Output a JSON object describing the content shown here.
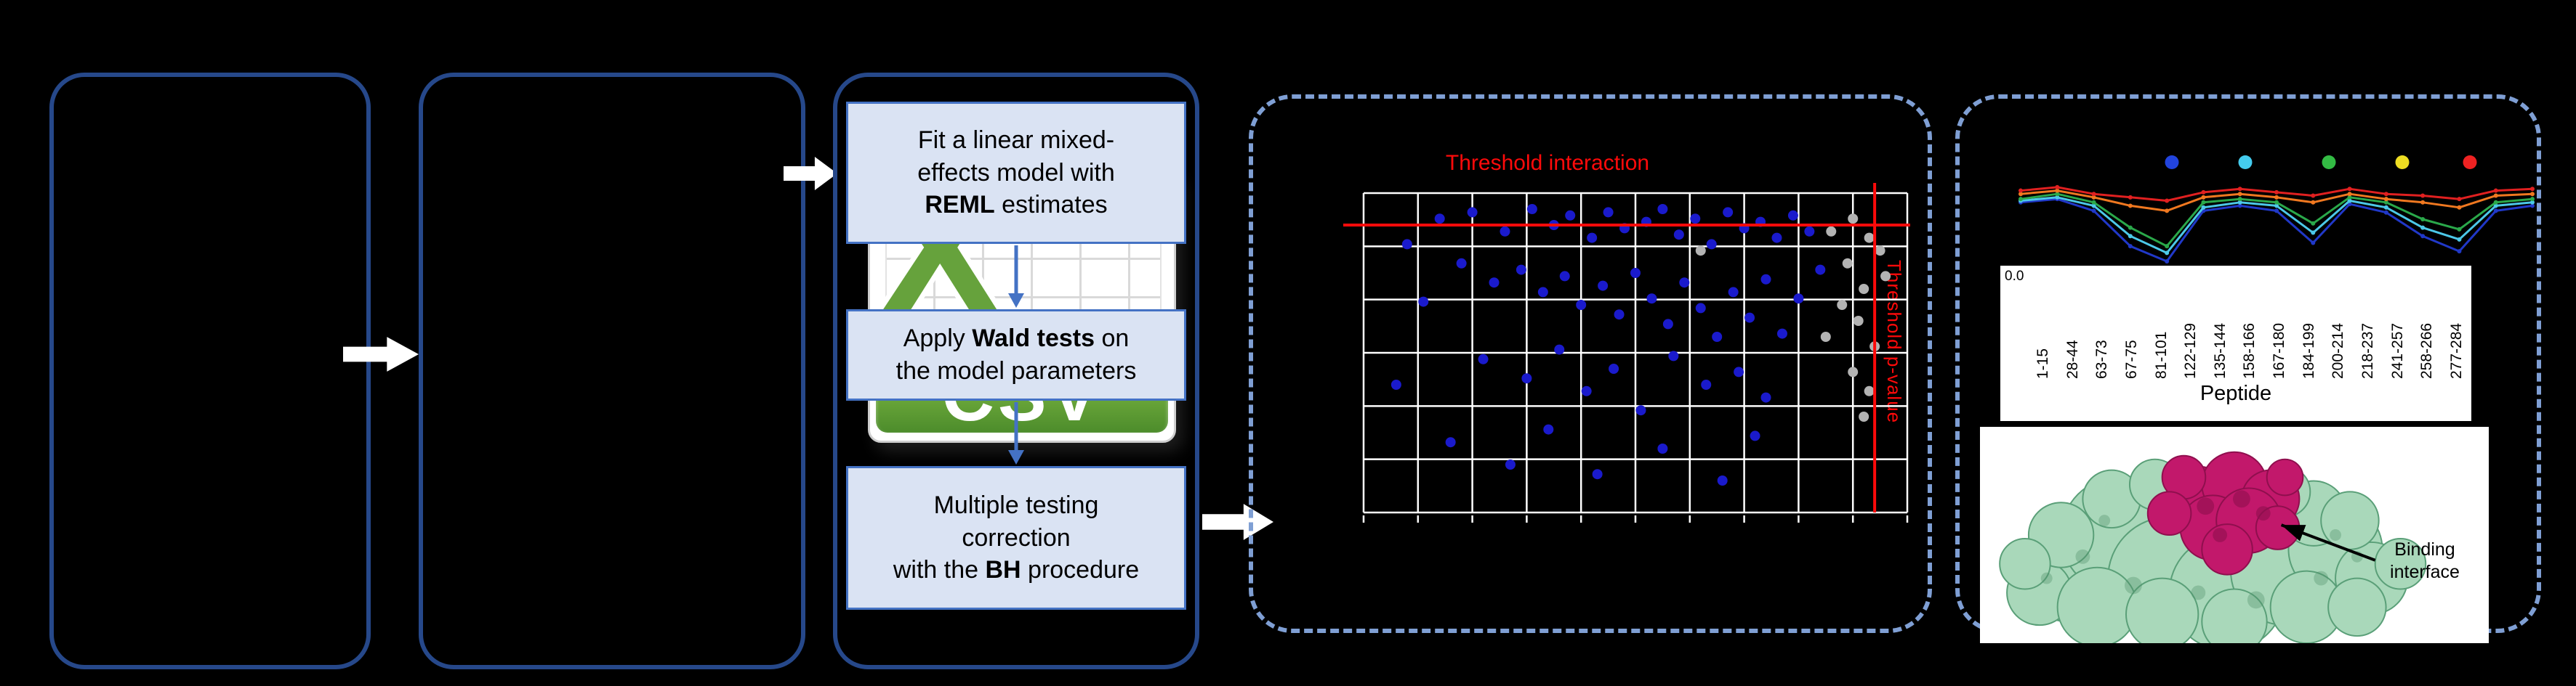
{
  "colors": {
    "background": "#000000",
    "panel_border": "#26488a",
    "dashed_panel_border": "#7f9fd4",
    "step_box_fill": "#dae3f3",
    "step_box_border": "#4472c4",
    "flow_arrow": "#ffffff",
    "step_arrow": "#4472c4",
    "threshold_red": "#ff0a0a",
    "scatter_blue": "#1a1acc",
    "scatter_gray": "#b3b3b3",
    "grid_line": "#ffffff",
    "csv_green_light": "#8bc34a",
    "csv_green_dark": "#4c8c2b",
    "csv_x_green": "#66a23c",
    "protein_green": "#a9d8ba",
    "protein_magenta": "#c2186b"
  },
  "csv_icon": {
    "x_letter": "X",
    "label": "CSV"
  },
  "steps": [
    {
      "lines": [
        [
          {
            "t": "Fit a linear mixed-"
          }
        ],
        [
          {
            "t": "effects model with"
          }
        ],
        [
          {
            "t": "REML",
            "b": true
          },
          {
            "t": " estimates"
          }
        ]
      ]
    },
    {
      "lines": [
        [
          {
            "t": "Apply "
          },
          {
            "t": "Wald tests",
            "b": true
          },
          {
            "t": " on"
          }
        ],
        [
          {
            "t": "the model parameters"
          }
        ]
      ]
    },
    {
      "lines": [
        [
          {
            "t": "Multiple testing"
          }
        ],
        [
          {
            "t": "correction"
          }
        ],
        [
          {
            "t": "with the "
          },
          {
            "t": "BH",
            "b": true
          },
          {
            "t": " procedure"
          }
        ]
      ]
    }
  ],
  "right_panel": {
    "binding_lines": [
      "Binding",
      "interface"
    ]
  },
  "chart_data": [
    {
      "id": "interaction-scatter",
      "type": "scatter",
      "title": "",
      "xlabel": "",
      "ylabel": "",
      "grid": true,
      "grid_cols": 10,
      "grid_rows": 6,
      "thresholds": {
        "interaction_label": "Threshold interaction",
        "pvalue_label": "Threshold p-value",
        "interaction_line_y_pct": 10,
        "pvalue_line_x_pct": 94
      },
      "series": [
        {
          "name": "peptides-significant",
          "color": "#1a1acc",
          "points": [
            [
              14,
              8
            ],
            [
              20,
              6
            ],
            [
              26,
              12
            ],
            [
              31,
              5
            ],
            [
              35,
              10
            ],
            [
              38,
              7
            ],
            [
              42,
              14
            ],
            [
              45,
              6
            ],
            [
              48,
              11
            ],
            [
              52,
              9
            ],
            [
              55,
              5
            ],
            [
              58,
              13
            ],
            [
              61,
              8
            ],
            [
              64,
              16
            ],
            [
              67,
              6
            ],
            [
              70,
              11
            ],
            [
              73,
              9
            ],
            [
              76,
              14
            ],
            [
              79,
              7
            ],
            [
              82,
              12
            ],
            [
              18,
              22
            ],
            [
              24,
              28
            ],
            [
              29,
              24
            ],
            [
              33,
              31
            ],
            [
              37,
              26
            ],
            [
              40,
              35
            ],
            [
              44,
              29
            ],
            [
              47,
              38
            ],
            [
              50,
              25
            ],
            [
              53,
              33
            ],
            [
              56,
              41
            ],
            [
              59,
              28
            ],
            [
              62,
              36
            ],
            [
              65,
              45
            ],
            [
              68,
              31
            ],
            [
              71,
              39
            ],
            [
              74,
              27
            ],
            [
              77,
              44
            ],
            [
              80,
              33
            ],
            [
              84,
              24
            ],
            [
              22,
              52
            ],
            [
              30,
              58
            ],
            [
              36,
              49
            ],
            [
              41,
              62
            ],
            [
              46,
              55
            ],
            [
              51,
              68
            ],
            [
              57,
              51
            ],
            [
              63,
              60
            ],
            [
              69,
              56
            ],
            [
              74,
              64
            ],
            [
              16,
              78
            ],
            [
              27,
              85
            ],
            [
              34,
              74
            ],
            [
              43,
              88
            ],
            [
              55,
              80
            ],
            [
              66,
              90
            ],
            [
              72,
              76
            ],
            [
              8,
              16
            ],
            [
              11,
              34
            ],
            [
              6,
              60
            ]
          ]
        },
        {
          "name": "peptides-nonsignificant",
          "color": "#b3b3b3",
          "points": [
            [
              90,
              8
            ],
            [
              93,
              14
            ],
            [
              89,
              22
            ],
            [
              92,
              30
            ],
            [
              95,
              18
            ],
            [
              91,
              40
            ],
            [
              94,
              48
            ],
            [
              90,
              56
            ],
            [
              93,
              62
            ],
            [
              88,
              35
            ],
            [
              96,
              26
            ],
            [
              92,
              70
            ],
            [
              86,
              12
            ],
            [
              85,
              45
            ],
            [
              62,
              18
            ]
          ]
        }
      ]
    },
    {
      "id": "uptake-lines",
      "type": "line",
      "title": "",
      "xlabel": "Peptide",
      "ylabel": "",
      "y_tick_label": "0.0",
      "categories": [
        "1-15",
        "28-44",
        "63-73",
        "67-75",
        "81-101",
        "122-129",
        "135-144",
        "158-166",
        "167-180",
        "184-199",
        "200-214",
        "218-237",
        "241-257",
        "258-266",
        "277-284"
      ],
      "legend_dot_colors": [
        "#2244dd",
        "#44ccee",
        "#33bb44",
        "#eedd22",
        "#ee2222"
      ],
      "legend_dot_x_pct": [
        30,
        44,
        60,
        74,
        87
      ],
      "series": [
        {
          "name": "state-blue",
          "color": "#2038c8",
          "values": [
            0.3,
            0.26,
            0.4,
            0.82,
            1.0,
            0.4,
            0.34,
            0.4,
            0.78,
            0.32,
            0.42,
            0.7,
            0.88,
            0.4,
            0.34
          ]
        },
        {
          "name": "state-cyan",
          "color": "#4cc8e8",
          "values": [
            0.28,
            0.24,
            0.34,
            0.7,
            0.9,
            0.36,
            0.3,
            0.34,
            0.66,
            0.28,
            0.36,
            0.6,
            0.74,
            0.34,
            0.3
          ]
        },
        {
          "name": "state-green",
          "color": "#2aa84a",
          "values": [
            0.26,
            0.2,
            0.3,
            0.6,
            0.82,
            0.3,
            0.26,
            0.3,
            0.55,
            0.24,
            0.3,
            0.5,
            0.62,
            0.3,
            0.26
          ]
        },
        {
          "name": "state-orange",
          "color": "#f07820",
          "values": [
            0.2,
            0.16,
            0.24,
            0.34,
            0.4,
            0.24,
            0.2,
            0.24,
            0.3,
            0.2,
            0.26,
            0.3,
            0.36,
            0.22,
            0.2
          ]
        },
        {
          "name": "state-red",
          "color": "#e02020",
          "values": [
            0.16,
            0.12,
            0.2,
            0.24,
            0.28,
            0.18,
            0.14,
            0.18,
            0.22,
            0.14,
            0.2,
            0.22,
            0.26,
            0.16,
            0.14
          ]
        }
      ]
    }
  ]
}
